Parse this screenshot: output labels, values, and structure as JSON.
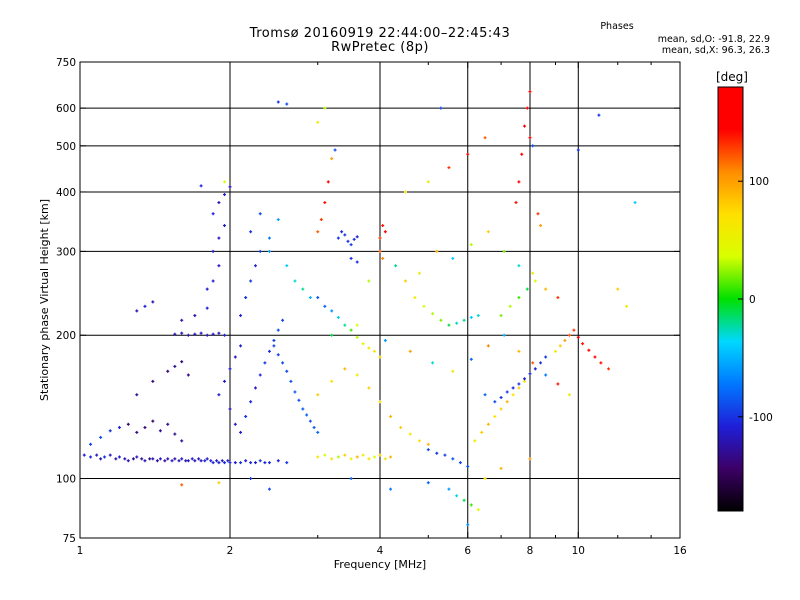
{
  "title": {
    "line1": "Tromsø 20160919 22:44:00–22:45:43",
    "line2": "RwPretec (8p)"
  },
  "stats": {
    "heading": "Phases",
    "o_label": "mean, sd,O:",
    "o_values": "-91.8, 22.9",
    "x_label": "mean, sd,X:",
    "x_values": "96.3, 26.3"
  },
  "colorbar": {
    "unit": "[deg]",
    "min": -180,
    "max": 180,
    "ticks": [
      {
        "value": 100,
        "label": "100"
      },
      {
        "value": 0,
        "label": "0"
      },
      {
        "value": -100,
        "label": "-100"
      }
    ],
    "colors": [
      "#000000",
      "#3c0066",
      "#1f1fd8",
      "#0078ff",
      "#00d8ff",
      "#00e000",
      "#d8ff00",
      "#ffe000",
      "#ff8c00",
      "#ff0000",
      "#ff0000"
    ]
  },
  "chart_data": {
    "type": "scatter",
    "xlabel": "Frequency [MHz]",
    "ylabel": "Stationary phase Virtual Height [km]",
    "x_scale": "log",
    "y_scale": "log",
    "xlim": [
      1,
      16
    ],
    "ylim": [
      75,
      750
    ],
    "x_ticks": [
      {
        "value": 1,
        "label": "1"
      },
      {
        "value": 2,
        "label": "2"
      },
      {
        "value": 4,
        "label": "4"
      },
      {
        "value": 6,
        "label": "6"
      },
      {
        "value": 8,
        "label": "8"
      },
      {
        "value": 10,
        "label": "10"
      },
      {
        "value": 16,
        "label": "16"
      }
    ],
    "y_ticks": [
      {
        "value": 75,
        "label": "75"
      },
      {
        "value": 100,
        "label": "100"
      },
      {
        "value": 200,
        "label": "200"
      },
      {
        "value": 300,
        "label": "300"
      },
      {
        "value": 400,
        "label": "400"
      },
      {
        "value": 500,
        "label": "500"
      },
      {
        "value": 600,
        "label": "600"
      },
      {
        "value": 750,
        "label": "750"
      }
    ],
    "x_gridlines": [
      2,
      4,
      6,
      8,
      10
    ],
    "y_gridlines": [
      100,
      200,
      300,
      400,
      500,
      600
    ],
    "points": [
      [
        1.02,
        112,
        -110
      ],
      [
        1.05,
        111,
        -105
      ],
      [
        1.08,
        112,
        -115
      ],
      [
        1.1,
        110,
        -120
      ],
      [
        1.12,
        111,
        -100
      ],
      [
        1.15,
        112,
        -118
      ],
      [
        1.18,
        110,
        -125
      ],
      [
        1.2,
        111,
        -110
      ],
      [
        1.23,
        110,
        -122
      ],
      [
        1.25,
        109,
        -118
      ],
      [
        1.28,
        110,
        -130
      ],
      [
        1.3,
        111,
        -115
      ],
      [
        1.33,
        110,
        -128
      ],
      [
        1.35,
        109,
        -120
      ],
      [
        1.38,
        110,
        -135
      ],
      [
        1.4,
        110,
        -118
      ],
      [
        1.43,
        109,
        -125
      ],
      [
        1.45,
        110,
        -112
      ],
      [
        1.48,
        109,
        -130
      ],
      [
        1.5,
        110,
        -120
      ],
      [
        1.53,
        109,
        -115
      ],
      [
        1.55,
        110,
        -126
      ],
      [
        1.58,
        109,
        -118
      ],
      [
        1.6,
        110,
        -110
      ],
      [
        1.63,
        109,
        -124
      ],
      [
        1.65,
        109,
        -116
      ],
      [
        1.68,
        110,
        -108
      ],
      [
        1.7,
        109,
        -120
      ],
      [
        1.73,
        110,
        -112
      ],
      [
        1.75,
        109,
        -118
      ],
      [
        1.78,
        109,
        -106
      ],
      [
        1.8,
        110,
        -114
      ],
      [
        1.83,
        109,
        -110
      ],
      [
        1.85,
        108,
        -104
      ],
      [
        1.88,
        109,
        -112
      ],
      [
        1.9,
        108,
        -108
      ],
      [
        1.93,
        109,
        -115
      ],
      [
        1.95,
        108,
        -102
      ],
      [
        1.98,
        109,
        -110
      ],
      [
        2.0,
        108,
        -106
      ],
      [
        2.05,
        108,
        -112
      ],
      [
        2.1,
        108,
        -100
      ],
      [
        2.15,
        109,
        -108
      ],
      [
        2.2,
        108,
        -104
      ],
      [
        2.25,
        108,
        -110
      ],
      [
        2.3,
        109,
        -98
      ],
      [
        2.35,
        108,
        -106
      ],
      [
        2.4,
        108,
        -102
      ],
      [
        2.5,
        109,
        -108
      ],
      [
        2.6,
        108,
        -100
      ],
      [
        1.05,
        118,
        -95
      ],
      [
        1.1,
        122,
        -88
      ],
      [
        1.15,
        126,
        -100
      ],
      [
        1.2,
        128,
        -105
      ],
      [
        1.25,
        130,
        -140
      ],
      [
        1.3,
        125,
        -132
      ],
      [
        1.35,
        128,
        -138
      ],
      [
        1.4,
        132,
        -142
      ],
      [
        1.45,
        126,
        -128
      ],
      [
        1.5,
        130,
        -135
      ],
      [
        1.55,
        124,
        -130
      ],
      [
        1.6,
        120,
        -126
      ],
      [
        1.3,
        150,
        -130
      ],
      [
        1.4,
        160,
        -136
      ],
      [
        1.5,
        168,
        -140
      ],
      [
        1.55,
        172,
        -128
      ],
      [
        1.6,
        176,
        -135
      ],
      [
        1.65,
        165,
        -132
      ],
      [
        1.3,
        225,
        -120
      ],
      [
        1.35,
        230,
        -110
      ],
      [
        1.4,
        235,
        -125
      ],
      [
        1.55,
        201,
        -120
      ],
      [
        1.6,
        202,
        -115
      ],
      [
        1.65,
        200,
        -122
      ],
      [
        1.7,
        201,
        -118
      ],
      [
        1.75,
        202,
        -112
      ],
      [
        1.8,
        200,
        -120
      ],
      [
        1.85,
        201,
        -110
      ],
      [
        1.9,
        202,
        -116
      ],
      [
        1.95,
        200,
        -108
      ],
      [
        1.6,
        215,
        -118
      ],
      [
        1.7,
        220,
        -122
      ],
      [
        1.8,
        228,
        -110
      ],
      [
        1.8,
        250,
        -112
      ],
      [
        1.85,
        260,
        -108
      ],
      [
        1.9,
        280,
        -115
      ],
      [
        1.85,
        300,
        -110
      ],
      [
        1.9,
        320,
        -118
      ],
      [
        1.95,
        340,
        -112
      ],
      [
        1.85,
        360,
        -108
      ],
      [
        1.9,
        380,
        -120
      ],
      [
        1.95,
        395,
        -110
      ],
      [
        2.0,
        410,
        -116
      ],
      [
        1.75,
        412,
        -105
      ],
      [
        1.95,
        420,
        40
      ],
      [
        1.9,
        150,
        -110
      ],
      [
        1.95,
        160,
        -112
      ],
      [
        2.0,
        170,
        -108
      ],
      [
        2.05,
        180,
        -115
      ],
      [
        2.1,
        190,
        -110
      ],
      [
        2.0,
        140,
        -118
      ],
      [
        2.05,
        130,
        -112
      ],
      [
        2.1,
        125,
        -108
      ],
      [
        2.15,
        135,
        -100
      ],
      [
        2.2,
        145,
        -106
      ],
      [
        2.25,
        155,
        -112
      ],
      [
        2.3,
        165,
        -104
      ],
      [
        2.35,
        175,
        -98
      ],
      [
        2.4,
        185,
        -102
      ],
      [
        2.45,
        195,
        -96
      ],
      [
        2.5,
        205,
        -90
      ],
      [
        2.55,
        215,
        -95
      ],
      [
        2.45,
        190,
        -92
      ],
      [
        2.5,
        182,
        -94
      ],
      [
        2.55,
        175,
        -90
      ],
      [
        2.6,
        168,
        -92
      ],
      [
        2.65,
        160,
        -88
      ],
      [
        2.7,
        152,
        -86
      ],
      [
        2.75,
        146,
        -90
      ],
      [
        2.8,
        140,
        -84
      ],
      [
        2.85,
        136,
        -80
      ],
      [
        2.9,
        132,
        -86
      ],
      [
        2.95,
        128,
        -82
      ],
      [
        3.0,
        125,
        -78
      ],
      [
        2.1,
        220,
        -104
      ],
      [
        2.15,
        240,
        -100
      ],
      [
        2.2,
        260,
        -96
      ],
      [
        2.25,
        280,
        -104
      ],
      [
        2.3,
        300,
        -98
      ],
      [
        2.2,
        330,
        -100
      ],
      [
        2.3,
        360,
        -90
      ],
      [
        2.4,
        300,
        -60
      ],
      [
        2.6,
        280,
        -40
      ],
      [
        2.7,
        260,
        -30
      ],
      [
        2.8,
        250,
        -20
      ],
      [
        2.9,
        240,
        -50
      ],
      [
        2.5,
        618,
        -100
      ],
      [
        2.6,
        612,
        -90
      ],
      [
        2.4,
        320,
        -70
      ],
      [
        2.5,
        350,
        -55
      ],
      [
        3.0,
        240,
        -85
      ],
      [
        3.1,
        230,
        -80
      ],
      [
        3.2,
        225,
        -60
      ],
      [
        3.3,
        218,
        -40
      ],
      [
        3.4,
        210,
        -20
      ],
      [
        3.5,
        205,
        10
      ],
      [
        3.6,
        198,
        30
      ],
      [
        3.7,
        192,
        45
      ],
      [
        3.8,
        188,
        60
      ],
      [
        3.9,
        185,
        70
      ],
      [
        4.0,
        180,
        80
      ],
      [
        3.3,
        320,
        -100
      ],
      [
        3.35,
        330,
        -105
      ],
      [
        3.4,
        325,
        -98
      ],
      [
        3.45,
        315,
        -102
      ],
      [
        3.5,
        310,
        -96
      ],
      [
        3.55,
        318,
        -100
      ],
      [
        3.6,
        322,
        -108
      ],
      [
        3.5,
        290,
        -100
      ],
      [
        3.6,
        285,
        -104
      ],
      [
        3.0,
        330,
        120
      ],
      [
        3.05,
        350,
        130
      ],
      [
        3.1,
        380,
        140
      ],
      [
        3.15,
        420,
        150
      ],
      [
        3.2,
        470,
        100
      ],
      [
        3.25,
        490,
        -90
      ],
      [
        3.1,
        600,
        30
      ],
      [
        3.0,
        560,
        60
      ],
      [
        3.0,
        111,
        60
      ],
      [
        3.1,
        112,
        40
      ],
      [
        3.2,
        110,
        70
      ],
      [
        3.3,
        111,
        30
      ],
      [
        3.4,
        112,
        80
      ],
      [
        3.5,
        110,
        50
      ],
      [
        3.6,
        111,
        90
      ],
      [
        3.7,
        112,
        60
      ],
      [
        3.8,
        110,
        70
      ],
      [
        3.9,
        111,
        40
      ],
      [
        4.0,
        112,
        80
      ],
      [
        4.1,
        110,
        60
      ],
      [
        4.2,
        111,
        90
      ],
      [
        3.0,
        150,
        80
      ],
      [
        3.2,
        160,
        70
      ],
      [
        3.4,
        170,
        90
      ],
      [
        3.6,
        165,
        60
      ],
      [
        3.8,
        155,
        80
      ],
      [
        4.0,
        145,
        70
      ],
      [
        4.2,
        135,
        90
      ],
      [
        4.4,
        128,
        80
      ],
      [
        4.6,
        124,
        60
      ],
      [
        4.8,
        120,
        70
      ],
      [
        5.0,
        118,
        90
      ],
      [
        4.0,
        320,
        130
      ],
      [
        4.05,
        340,
        140
      ],
      [
        4.1,
        330,
        150
      ],
      [
        4.0,
        300,
        120
      ],
      [
        4.05,
        290,
        110
      ],
      [
        4.5,
        260,
        80
      ],
      [
        4.7,
        240,
        60
      ],
      [
        4.9,
        230,
        40
      ],
      [
        5.1,
        222,
        30
      ],
      [
        5.3,
        215,
        20
      ],
      [
        5.5,
        210,
        -10
      ],
      [
        5.7,
        212,
        -30
      ],
      [
        5.9,
        215,
        -20
      ],
      [
        6.1,
        218,
        -40
      ],
      [
        6.3,
        220,
        -30
      ],
      [
        5.0,
        115,
        -90
      ],
      [
        5.2,
        113,
        -100
      ],
      [
        5.4,
        112,
        -95
      ],
      [
        5.6,
        110,
        -88
      ],
      [
        5.8,
        108,
        -92
      ],
      [
        6.0,
        106,
        -86
      ],
      [
        5.5,
        95,
        -60
      ],
      [
        5.7,
        92,
        -30
      ],
      [
        5.9,
        90,
        -10
      ],
      [
        6.1,
        88,
        10
      ],
      [
        6.3,
        86,
        40
      ],
      [
        6.2,
        120,
        60
      ],
      [
        6.4,
        125,
        80
      ],
      [
        6.6,
        130,
        90
      ],
      [
        6.8,
        135,
        70
      ],
      [
        7.0,
        140,
        80
      ],
      [
        7.2,
        145,
        90
      ],
      [
        7.4,
        150,
        70
      ],
      [
        7.6,
        155,
        80
      ],
      [
        7.8,
        160,
        60
      ],
      [
        6.5,
        150,
        -80
      ],
      [
        6.8,
        145,
        -90
      ],
      [
        7.0,
        148,
        -100
      ],
      [
        7.2,
        152,
        -95
      ],
      [
        7.4,
        155,
        -105
      ],
      [
        7.6,
        158,
        -98
      ],
      [
        7.8,
        162,
        -110
      ],
      [
        8.0,
        166,
        -102
      ],
      [
        8.2,
        170,
        -108
      ],
      [
        8.4,
        175,
        -100
      ],
      [
        8.6,
        180,
        -96
      ],
      [
        7.0,
        220,
        20
      ],
      [
        7.3,
        230,
        30
      ],
      [
        7.6,
        240,
        10
      ],
      [
        7.9,
        250,
        -10
      ],
      [
        8.2,
        260,
        40
      ],
      [
        7.5,
        380,
        140
      ],
      [
        7.6,
        420,
        160
      ],
      [
        7.7,
        480,
        170
      ],
      [
        7.8,
        550,
        160
      ],
      [
        7.9,
        600,
        150
      ],
      [
        8.0,
        650,
        170
      ],
      [
        8.0,
        520,
        170
      ],
      [
        8.1,
        500,
        -90
      ],
      [
        8.3,
        360,
        130
      ],
      [
        8.4,
        340,
        100
      ],
      [
        9.0,
        185,
        60
      ],
      [
        9.2,
        190,
        80
      ],
      [
        9.4,
        195,
        100
      ],
      [
        9.6,
        200,
        120
      ],
      [
        9.8,
        205,
        130
      ],
      [
        10.0,
        198,
        150
      ],
      [
        10.2,
        192,
        140
      ],
      [
        10.5,
        186,
        160
      ],
      [
        10.8,
        180,
        150
      ],
      [
        11.1,
        175,
        140
      ],
      [
        11.5,
        170,
        130
      ],
      [
        10.0,
        490,
        -100
      ],
      [
        11.0,
        580,
        -100
      ],
      [
        13.0,
        380,
        -40
      ],
      [
        12.0,
        250,
        80
      ],
      [
        12.5,
        230,
        60
      ],
      [
        2.2,
        100,
        -100
      ],
      [
        2.4,
        95,
        -90
      ],
      [
        1.9,
        98,
        80
      ],
      [
        1.6,
        97,
        120
      ],
      [
        3.5,
        100,
        -80
      ],
      [
        4.2,
        95,
        -70
      ],
      [
        5.0,
        98,
        -80
      ],
      [
        6.0,
        80,
        -60
      ],
      [
        6.5,
        100,
        70
      ],
      [
        7.0,
        105,
        90
      ],
      [
        8.0,
        110,
        100
      ],
      [
        4.5,
        400,
        70
      ],
      [
        5.0,
        420,
        60
      ],
      [
        5.5,
        450,
        130
      ],
      [
        6.0,
        480,
        140
      ],
      [
        6.5,
        520,
        120
      ],
      [
        5.3,
        600,
        -90
      ],
      [
        3.8,
        260,
        30
      ],
      [
        4.3,
        280,
        -20
      ],
      [
        4.8,
        270,
        60
      ],
      [
        5.2,
        300,
        90
      ],
      [
        5.6,
        290,
        -40
      ],
      [
        6.1,
        310,
        30
      ],
      [
        6.6,
        330,
        80
      ],
      [
        7.1,
        300,
        20
      ],
      [
        7.6,
        280,
        -30
      ],
      [
        8.1,
        270,
        60
      ],
      [
        8.6,
        250,
        90
      ],
      [
        9.1,
        240,
        130
      ],
      [
        3.2,
        200,
        -10
      ],
      [
        3.6,
        210,
        40
      ],
      [
        4.1,
        195,
        -60
      ],
      [
        4.6,
        185,
        100
      ],
      [
        5.1,
        175,
        -30
      ],
      [
        5.6,
        168,
        60
      ],
      [
        6.1,
        178,
        -80
      ],
      [
        6.6,
        190,
        110
      ],
      [
        7.1,
        200,
        -50
      ],
      [
        7.6,
        185,
        90
      ],
      [
        8.1,
        175,
        120
      ],
      [
        8.6,
        165,
        -70
      ],
      [
        9.1,
        158,
        140
      ],
      [
        9.6,
        150,
        60
      ]
    ]
  }
}
